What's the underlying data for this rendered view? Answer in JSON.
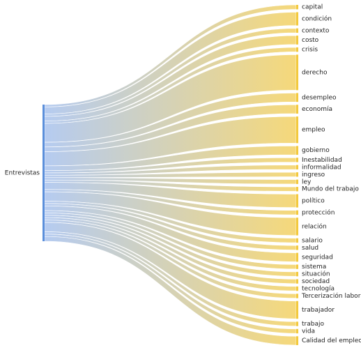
{
  "chart_data": {
    "type": "sankey",
    "source": "Entrevistas",
    "colors": {
      "source_bar": "#5b8fdb",
      "target_bar": "#f3c93c",
      "link_start": "#a8c2ee",
      "link_end": "#f4d263"
    },
    "targets": [
      {
        "name": "capital",
        "value": 1
      },
      {
        "name": "condición",
        "value": 3
      },
      {
        "name": "contexto",
        "value": 1
      },
      {
        "name": "costo",
        "value": 2
      },
      {
        "name": "crisis",
        "value": 1
      },
      {
        "name": "derecho",
        "value": 8
      },
      {
        "name": "desempleo",
        "value": 2
      },
      {
        "name": "economía",
        "value": 2
      },
      {
        "name": "empleo",
        "value": 6
      },
      {
        "name": "gobierno",
        "value": 2
      },
      {
        "name": "Inestabilidad",
        "value": 1
      },
      {
        "name": "informalidad",
        "value": 1
      },
      {
        "name": "ingreso",
        "value": 1
      },
      {
        "name": "ley",
        "value": 1
      },
      {
        "name": "Mundo del trabajo",
        "value": 1
      },
      {
        "name": "político",
        "value": 3
      },
      {
        "name": "protección",
        "value": 1
      },
      {
        "name": "relación",
        "value": 4
      },
      {
        "name": "salario",
        "value": 1
      },
      {
        "name": "salud",
        "value": 1
      },
      {
        "name": "seguridad",
        "value": 2
      },
      {
        "name": "sistema",
        "value": 1
      },
      {
        "name": "situación",
        "value": 1
      },
      {
        "name": "sociedad",
        "value": 1
      },
      {
        "name": "tecnología",
        "value": 1
      },
      {
        "name": "Tercerización laboral",
        "value": 1
      },
      {
        "name": "trabajador",
        "value": 4
      },
      {
        "name": "trabajo",
        "value": 1
      },
      {
        "name": "vida",
        "value": 1
      },
      {
        "name": "Calidad del empleo",
        "value": 2
      }
    ]
  }
}
